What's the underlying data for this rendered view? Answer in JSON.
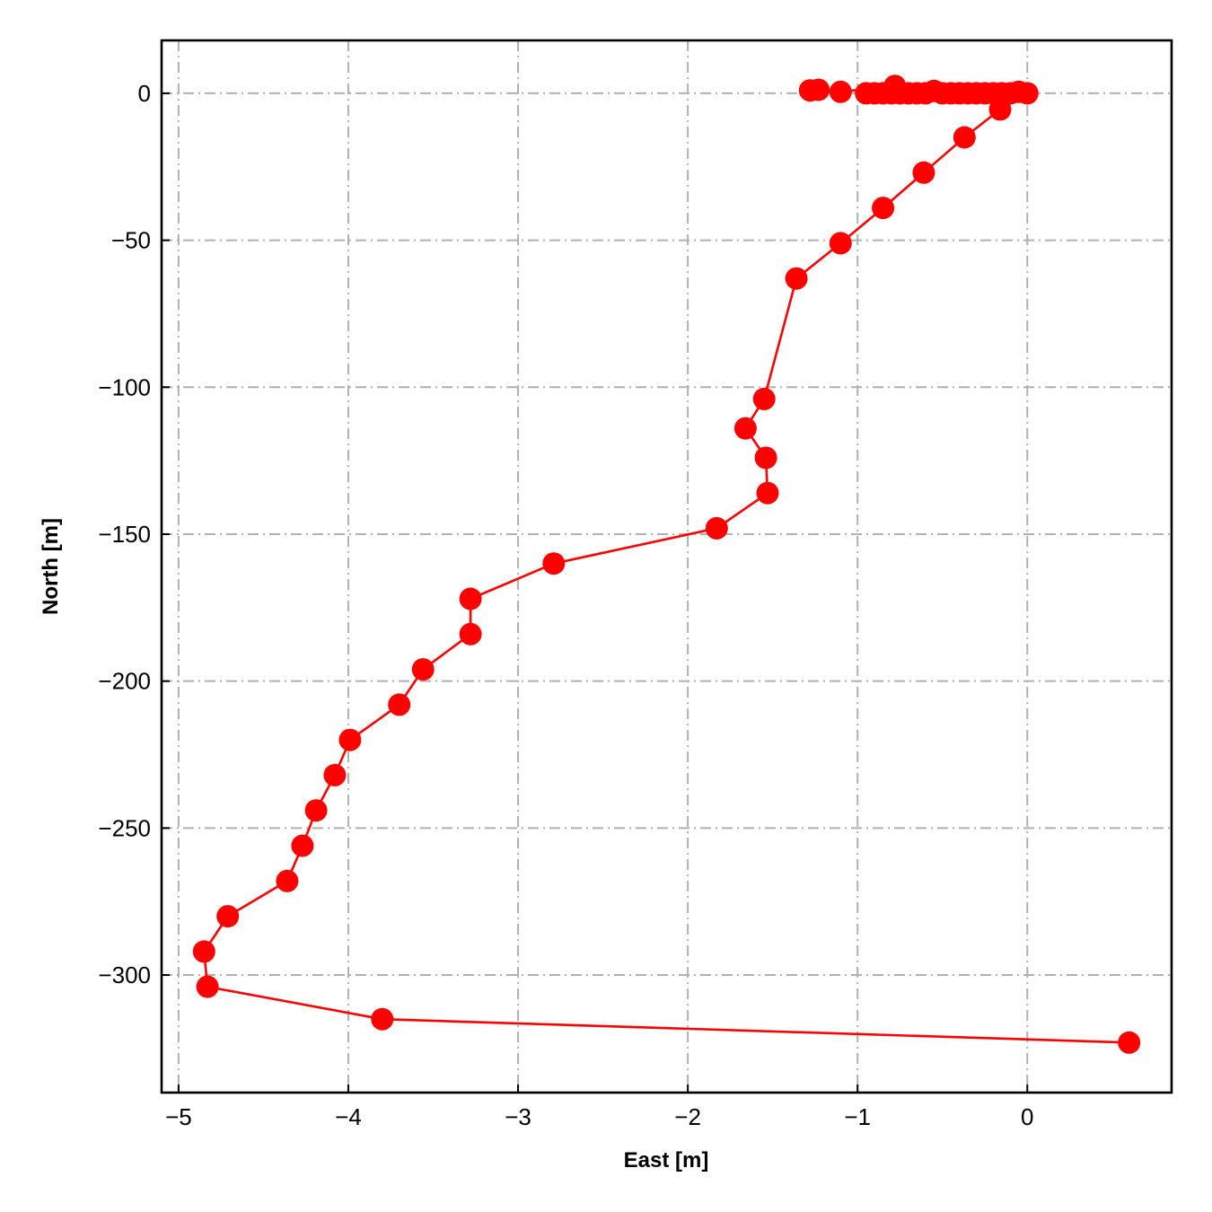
{
  "chart_data": {
    "type": "line",
    "title": "",
    "xlabel": "East [m]",
    "ylabel": "North [m]",
    "xlim": [
      -5.1,
      0.85
    ],
    "ylim": [
      -340,
      18
    ],
    "grid": true,
    "legend": "none",
    "x_ticks": [
      -5,
      -4,
      -3,
      -2,
      -1,
      0
    ],
    "x_tick_labels": [
      "−5",
      "−4",
      "−3",
      "−2",
      "−1",
      "0"
    ],
    "y_ticks": [
      0,
      -50,
      -100,
      -150,
      -200,
      -250,
      -300
    ],
    "y_tick_labels": [
      "0",
      "−50",
      "−100",
      "−150",
      "−200",
      "−250",
      "−300"
    ],
    "colors": {
      "series": "#ff0000",
      "grid": "#b0b0b0",
      "axes": "#000000"
    },
    "series": [
      {
        "points": [
          [
            -1.28,
            1
          ],
          [
            -1.23,
            1.2
          ],
          [
            -1.1,
            0.5
          ],
          [
            -0.78,
            2.5
          ],
          [
            -0.95,
            0
          ],
          [
            -0.9,
            0
          ],
          [
            -0.85,
            0
          ],
          [
            -0.8,
            0
          ],
          [
            -0.75,
            0
          ],
          [
            -0.7,
            0
          ],
          [
            -0.65,
            0
          ],
          [
            -0.6,
            0
          ],
          [
            -0.55,
            0.8
          ],
          [
            -0.5,
            0
          ],
          [
            -0.45,
            0
          ],
          [
            -0.4,
            0
          ],
          [
            -0.35,
            0
          ],
          [
            -0.3,
            0
          ],
          [
            -0.25,
            0
          ],
          [
            -0.2,
            0
          ],
          [
            -0.15,
            0
          ],
          [
            -0.1,
            0
          ],
          [
            -0.05,
            0.5
          ],
          [
            0,
            0
          ],
          [
            -0.16,
            -5.5
          ],
          [
            -0.37,
            -15
          ],
          [
            -0.61,
            -27
          ],
          [
            -0.85,
            -39
          ],
          [
            -1.1,
            -51
          ],
          [
            -1.36,
            -63
          ],
          [
            -1.55,
            -104
          ],
          [
            -1.66,
            -114
          ],
          [
            -1.54,
            -124
          ],
          [
            -1.53,
            -136
          ],
          [
            -1.83,
            -148
          ],
          [
            -2.79,
            -160
          ],
          [
            -3.28,
            -172
          ],
          [
            -3.28,
            -184
          ],
          [
            -3.56,
            -196
          ],
          [
            -3.7,
            -208
          ],
          [
            -3.99,
            -220
          ],
          [
            -4.08,
            -232
          ],
          [
            -4.19,
            -244
          ],
          [
            -4.27,
            -256
          ],
          [
            -4.36,
            -268
          ],
          [
            -4.71,
            -280
          ],
          [
            -4.85,
            -292
          ],
          [
            -4.83,
            -304
          ],
          [
            -3.8,
            -315
          ],
          [
            0.6,
            -323
          ]
        ]
      }
    ]
  }
}
